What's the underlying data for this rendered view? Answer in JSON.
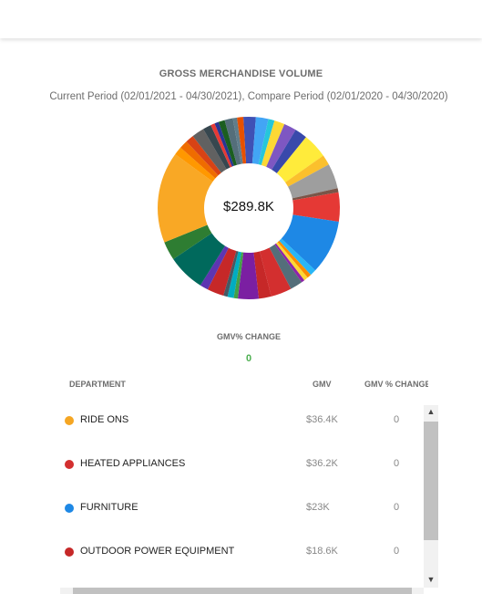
{
  "title": "GROSS MERCHANDISE VOLUME",
  "subtitle": "Current Period (02/01/2021 - 04/30/2021), Compare Period (02/01/2020 - 04/30/2020)",
  "center_value": "$289.8K",
  "gmv_change_label": "GMV% CHANGE",
  "gmv_change_value": "0",
  "colors": {
    "accent_green": "#4caf50"
  },
  "table": {
    "headers": {
      "department": "DEPARTMENT",
      "gmv": "GMV",
      "gmv_change": "GMV % CHANGE (OF LAST PERIOD)"
    },
    "rows": [
      {
        "department": "RIDE ONS",
        "gmv": "$36.4K",
        "change": "0",
        "color": "#f5a623"
      },
      {
        "department": "HEATED APPLIANCES",
        "gmv": "$36.2K",
        "change": "0",
        "color": "#d32f2f"
      },
      {
        "department": "FURNITURE",
        "gmv": "$23K",
        "change": "0",
        "color": "#1e88e5"
      },
      {
        "department": "OUTDOOR POWER EQUIPMENT",
        "gmv": "$18.6K",
        "change": "0",
        "color": "#c62828"
      }
    ]
  },
  "chart_data": {
    "type": "pie",
    "title": "GROSS MERCHANDISE VOLUME",
    "labels": [
      "RIDE ONS",
      "HEATED APPLIANCES",
      "FURNITURE",
      "OUTDOOR POWER EQUIPMENT"
    ],
    "values": [
      36.4,
      36.2,
      23.0,
      18.6
    ],
    "total": 289.8,
    "unit": "$K",
    "slice_colors": [
      "#3f51b5",
      "#42a5f5",
      "#26c6da",
      "#fdd835",
      "#7e57c2",
      "#3949ab",
      "#ffeb3b",
      "#fbc02d",
      "#9e9e9e",
      "#795548",
      "#e53935",
      "#1e88e5",
      "#29b6f6",
      "#fb8c00",
      "#fdd835",
      "#8e24aa",
      "#546e7a",
      "#d32f2f",
      "#c62828",
      "#7b1fa2",
      "#43a047",
      "#00acc1",
      "#455a64",
      "#c62828",
      "#5e35b1",
      "#00695c",
      "#2e7d32",
      "#f9a825",
      "#ff9800",
      "#ef6c00",
      "#d84315",
      "#616161",
      "#37474f",
      "#e53935",
      "#283593",
      "#1b5e20",
      "#546e7a",
      "#607d8b",
      "#e65100"
    ],
    "slice_weights": [
      3,
      3,
      1.5,
      2.5,
      3,
      3,
      6,
      2.5,
      6,
      1,
      7,
      13,
      1.5,
      1,
      1,
      0.8,
      3,
      5,
      3,
      5,
      1,
      1.5,
      1,
      4,
      2,
      9,
      4.5,
      22,
      2,
      2,
      2,
      3,
      2,
      1,
      1,
      1.5,
      2,
      1,
      1.5
    ]
  }
}
